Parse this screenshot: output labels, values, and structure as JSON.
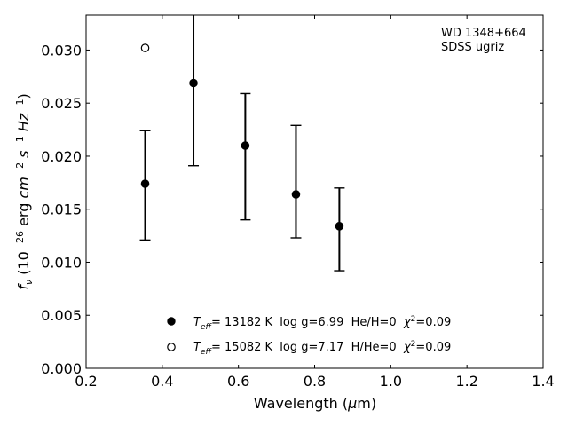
{
  "chart_data": {
    "type": "scatter",
    "title": "",
    "xlabel_main": "Wavelength (",
    "xlabel_mu": "μ",
    "xlabel_end": "m)",
    "ylabel_f": "f",
    "ylabel_sub": "ν",
    "ylabel_paren_open": " (10",
    "ylabel_exp1": "−26",
    "ylabel_erg": " erg ",
    "ylabel_cm": "cm",
    "ylabel_exp2": "−2",
    "ylabel_s": " s",
    "ylabel_exp3": "−1",
    "ylabel_hz": " Hz",
    "ylabel_exp4": "−1",
    "ylabel_paren_close": ")",
    "xlim": [
      0.2,
      1.4
    ],
    "ylim": [
      0.0,
      0.0333
    ],
    "xticks": [
      0.2,
      0.4,
      0.6,
      0.8,
      1.0,
      1.2,
      1.4
    ],
    "xtick_labels": [
      "0.2",
      "0.4",
      "0.6",
      "0.8",
      "1.0",
      "1.2",
      "1.4"
    ],
    "yticks": [
      0.0,
      0.005,
      0.01,
      0.015,
      0.02,
      0.025,
      0.03
    ],
    "ytick_labels": [
      "0.000",
      "0.005",
      "0.010",
      "0.015",
      "0.020",
      "0.025",
      "0.030"
    ],
    "annotation_line1": "WD 1348+664",
    "annotation_line2": "SDSS ugriz",
    "series": [
      {
        "marker": "filled-circle",
        "color": "#000000",
        "x": [
          0.355,
          0.482,
          0.618,
          0.751,
          0.865
        ],
        "y": [
          0.0174,
          0.0269,
          0.021,
          0.0164,
          0.0134
        ],
        "yerr_low": [
          0.0121,
          0.0191,
          0.014,
          0.0123,
          0.0092
        ],
        "yerr_high": [
          0.0224,
          0.035,
          0.0259,
          0.0229,
          0.017
        ]
      },
      {
        "marker": "open-circle",
        "color": "#000000",
        "x": [
          0.355
        ],
        "y": [
          0.0302
        ]
      }
    ],
    "legend": [
      {
        "marker": "filled-circle",
        "teff_label": "T",
        "teff_sub": "eff",
        "text": "= 13182 K  log g=6.99  He/H=0  ",
        "chi": "χ",
        "chi_sup": "2",
        "chi_val": "=0.09"
      },
      {
        "marker": "open-circle",
        "teff_label": "T",
        "teff_sub": "eff",
        "text": "= 15082 K  log g=7.17  H/He=0  ",
        "chi": "χ",
        "chi_sup": "2",
        "chi_val": "=0.09"
      }
    ]
  }
}
